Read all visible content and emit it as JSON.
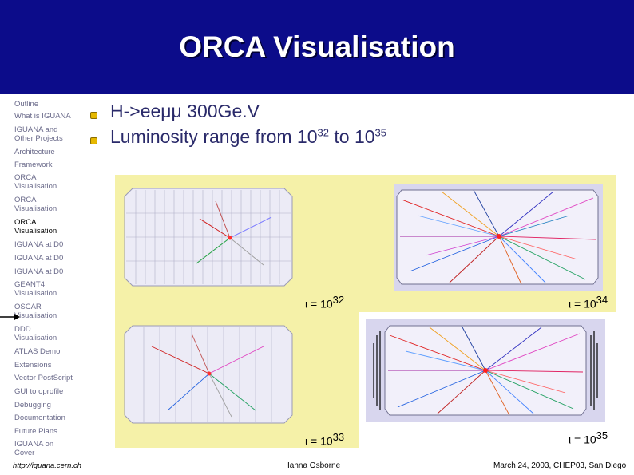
{
  "title": "ORCA Visualisation",
  "colors": {
    "header_bg": "#0c0c8a",
    "title": "#ffffff",
    "bullet_text": "#2a2a6a",
    "panel_bg": "#f5f1a8",
    "nav_text": "#6a6a8a"
  },
  "sidebar": {
    "items": [
      {
        "label": "Outline"
      },
      {
        "label": "What is IGUANA"
      },
      {
        "label": "IGUANA and Other Projects"
      },
      {
        "label": "Architecture"
      },
      {
        "label": "Framework"
      },
      {
        "label": "ORCA Visualisation"
      },
      {
        "label": "ORCA Visualisation"
      },
      {
        "label": "ORCA Visualisation",
        "active": true
      },
      {
        "label": "IGUANA at D0"
      },
      {
        "label": "IGUANA at D0"
      },
      {
        "label": "IGUANA at D0"
      },
      {
        "label": "GEANT4 Visualisation"
      },
      {
        "label": "OSCAR Visualisation"
      },
      {
        "label": "DDD Visualisation"
      },
      {
        "label": "ATLAS Demo"
      },
      {
        "label": "Extensions"
      },
      {
        "label": "Vector PostScript"
      },
      {
        "label": "GUI to oprofile"
      },
      {
        "label": "Debugging"
      },
      {
        "label": "Documentation"
      },
      {
        "label": "Future Plans"
      },
      {
        "label": "IGUANA on Cover"
      }
    ],
    "footer_url": "http://iguana.cern.ch"
  },
  "bullets": {
    "b1_text": "H->eeμμ 300Ge.V",
    "b2_prefix": "Luminosity range from 10",
    "b2_exp1": "32",
    "b2_mid": " to 10",
    "b2_exp2": "35"
  },
  "panels": [
    {
      "caption_prefix": "ι = 10",
      "caption_exp": "32"
    },
    {
      "caption_prefix": "ι = 10",
      "caption_exp": "34"
    },
    {
      "caption_prefix": "ι = 10",
      "caption_exp": "33"
    },
    {
      "caption_prefix": "ι = 10",
      "caption_exp": "35"
    }
  ],
  "footer": {
    "author": "Ianna Osborne",
    "date": "March 24, 2003, CHEP03, San Diego"
  },
  "icons": [
    "arrow-right-icon",
    "bullet-icon"
  ]
}
